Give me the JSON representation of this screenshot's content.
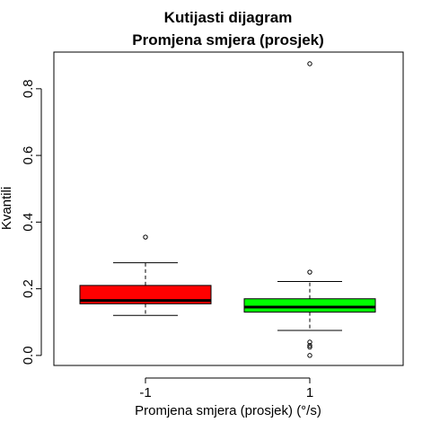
{
  "chart_data": {
    "type": "boxplot",
    "title": "Kutijasti dijagram",
    "subtitle": "Promjena smjera (prosjek)",
    "xlabel": "Promjena smjera (prosjek) (°/s)",
    "ylabel": "Kvantili",
    "categories": [
      "-1",
      "1"
    ],
    "yticks": [
      "0.0",
      "0.2",
      "0.4",
      "0.6",
      "0.8"
    ],
    "ylim": [
      -0.03,
      0.91
    ],
    "grid": false,
    "legend": "none",
    "boxes": [
      {
        "category": "-1",
        "color": "#ff0000",
        "whisker_low": 0.12,
        "q1": 0.155,
        "median": 0.165,
        "q3": 0.21,
        "whisker_high": 0.278,
        "outliers": [
          0.355
        ]
      },
      {
        "category": "1",
        "color": "#00ff00",
        "whisker_low": 0.075,
        "q1": 0.13,
        "median": 0.145,
        "q3": 0.17,
        "whisker_high": 0.222,
        "outliers": [
          0.875,
          0.25,
          0.04,
          0.03,
          0.025,
          0.0
        ]
      }
    ]
  }
}
